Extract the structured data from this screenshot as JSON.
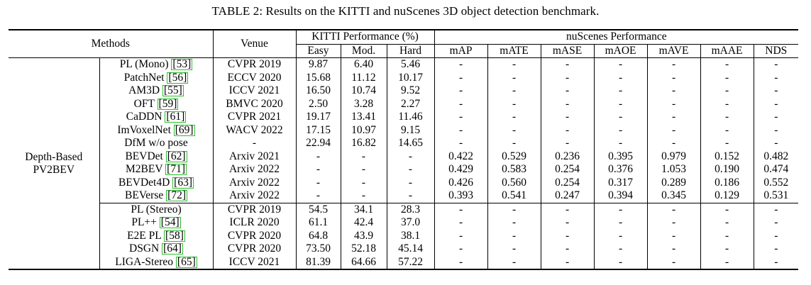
{
  "caption": "TABLE 2: Results on the KITTI and nuScenes 3D object detection benchmark.",
  "header": {
    "methods": "Methods",
    "venue": "Venue",
    "kitti_group": "KITTI Performance (%)",
    "nuscenes_group": "nuScenes Performance",
    "kitti_cols": [
      "Easy",
      "Mod.",
      "Hard"
    ],
    "nuscenes_cols": [
      "mAP",
      "mATE",
      "mASE",
      "mAOE",
      "mAVE",
      "mAAE",
      "NDS"
    ]
  },
  "group_label": {
    "line1": "Depth-Based",
    "line2": "PV2BEV"
  },
  "rows": [
    {
      "name": "PL (Mono)",
      "ref": "53",
      "venue": "CVPR 2019",
      "kitti": [
        "9.87",
        "6.40",
        "5.46"
      ],
      "nus": [
        "-",
        "-",
        "-",
        "-",
        "-",
        "-",
        "-"
      ]
    },
    {
      "name": "PatchNet",
      "ref": "56",
      "venue": "ECCV 2020",
      "kitti": [
        "15.68",
        "11.12",
        "10.17"
      ],
      "nus": [
        "-",
        "-",
        "-",
        "-",
        "-",
        "-",
        "-"
      ]
    },
    {
      "name": "AM3D",
      "ref": "55",
      "venue": "ICCV 2021",
      "kitti": [
        "16.50",
        "10.74",
        "9.52"
      ],
      "nus": [
        "-",
        "-",
        "-",
        "-",
        "-",
        "-",
        "-"
      ]
    },
    {
      "name": "OFT",
      "ref": "59",
      "venue": "BMVC 2020",
      "kitti": [
        "2.50",
        "3.28",
        "2.27"
      ],
      "nus": [
        "-",
        "-",
        "-",
        "-",
        "-",
        "-",
        "-"
      ]
    },
    {
      "name": "CaDDN",
      "ref": "61",
      "venue": "CVPR 2021",
      "kitti": [
        "19.17",
        "13.41",
        "11.46"
      ],
      "nus": [
        "-",
        "-",
        "-",
        "-",
        "-",
        "-",
        "-"
      ]
    },
    {
      "name": "ImVoxelNet",
      "ref": "69",
      "venue": "WACV 2022",
      "kitti": [
        "17.15",
        "10.97",
        "9.15"
      ],
      "nus": [
        "-",
        "-",
        "-",
        "-",
        "-",
        "-",
        "-"
      ]
    },
    {
      "name": "DfM w/o pose",
      "ref": "",
      "venue": "-",
      "kitti": [
        "22.94",
        "16.82",
        "14.65"
      ],
      "nus": [
        "-",
        "-",
        "-",
        "-",
        "-",
        "-",
        "-"
      ]
    },
    {
      "name": "BEVDet",
      "ref": "62",
      "venue": "Arxiv 2021",
      "kitti": [
        "-",
        "-",
        "-"
      ],
      "nus": [
        "0.422",
        "0.529",
        "0.236",
        "0.395",
        "0.979",
        "0.152",
        "0.482"
      ]
    },
    {
      "name": "M2BEV",
      "ref": "71",
      "venue": "Arxiv 2022",
      "kitti": [
        "-",
        "-",
        "-"
      ],
      "nus": [
        "0.429",
        "0.583",
        "0.254",
        "0.376",
        "1.053",
        "0.190",
        "0.474"
      ]
    },
    {
      "name": "BEVDet4D",
      "ref": "63",
      "venue": "Arxiv 2022",
      "kitti": [
        "-",
        "-",
        "-"
      ],
      "nus": [
        "0.426",
        "0.560",
        "0.254",
        "0.317",
        "0.289",
        "0.186",
        "0.552"
      ]
    },
    {
      "name": "BEVerse",
      "ref": "72",
      "venue": "Arxiv 2022",
      "kitti": [
        "-",
        "-",
        "-"
      ],
      "nus": [
        "0.393",
        "0.541",
        "0.247",
        "0.394",
        "0.345",
        "0.129",
        "0.531"
      ]
    },
    {
      "name": "PL (Stereo)",
      "ref": "",
      "venue": "CVPR 2019",
      "kitti": [
        "54.5",
        "34.1",
        "28.3"
      ],
      "nus": [
        "-",
        "-",
        "-",
        "-",
        "-",
        "-",
        "-"
      ]
    },
    {
      "name": "PL++",
      "ref": "54",
      "venue": "ICLR 2020",
      "kitti": [
        "61.1",
        "42.4",
        "37.0"
      ],
      "nus": [
        "-",
        "-",
        "-",
        "-",
        "-",
        "-",
        "-"
      ]
    },
    {
      "name": "E2E PL",
      "ref": "58",
      "venue": "CVPR 2020",
      "kitti": [
        "64.8",
        "43.9",
        "38.1"
      ],
      "nus": [
        "-",
        "-",
        "-",
        "-",
        "-",
        "-",
        "-"
      ]
    },
    {
      "name": "DSGN",
      "ref": "64",
      "venue": "CVPR 2020",
      "kitti": [
        "73.50",
        "52.18",
        "45.14"
      ],
      "nus": [
        "-",
        "-",
        "-",
        "-",
        "-",
        "-",
        "-"
      ]
    },
    {
      "name": "LIGA-Stereo",
      "ref": "65",
      "venue": "ICCV 2021",
      "kitti": [
        "81.39",
        "64.66",
        "57.22"
      ],
      "nus": [
        "-",
        "-",
        "-",
        "-",
        "-",
        "-",
        "-"
      ]
    }
  ]
}
